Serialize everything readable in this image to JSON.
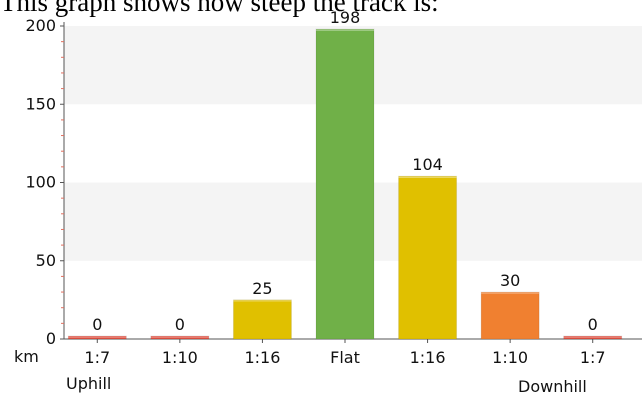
{
  "heading": "This graph shows how steep the track is:",
  "chart_data": {
    "type": "bar",
    "categories": [
      "1:7",
      "1:10",
      "1:16",
      "Flat",
      "1:16",
      "1:10",
      "1:7"
    ],
    "values": [
      0,
      0,
      25,
      198,
      104,
      30,
      0
    ],
    "bar_colors": [
      "#e05040",
      "#e05040",
      "#e0c000",
      "#70b048",
      "#e0c000",
      "#f08030",
      "#e05040"
    ],
    "ylim": [
      0,
      200
    ],
    "yticks": [
      0,
      50,
      100,
      150,
      200
    ],
    "y_unit": "km",
    "left_caption": "Uphill",
    "right_caption": "Downhill",
    "grid": "alternating horizontal bands",
    "legend": "none"
  }
}
